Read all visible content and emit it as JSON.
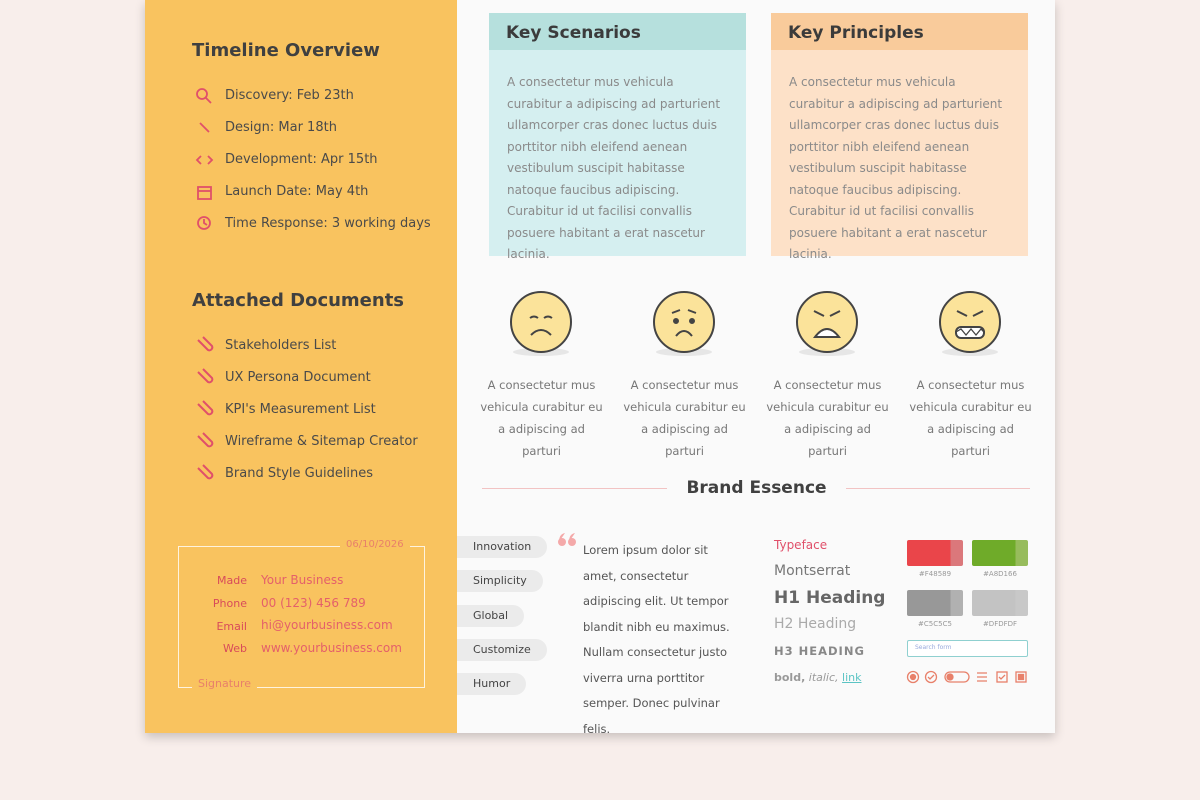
{
  "timeline": {
    "title": "Timeline Overview",
    "items": [
      "Discovery:  Feb 23th",
      "Design: Mar 18th",
      "Development: Apr 15th",
      "Launch Date: May 4th",
      "Time Response: 3 working days"
    ]
  },
  "documents": {
    "title": "Attached Documents",
    "items": [
      "Stakeholders List",
      "UX Persona Document",
      "KPI's Measurement List",
      "Wireframe & Sitemap Creator",
      "Brand Style Guidelines"
    ]
  },
  "signature": {
    "date": "06/10/2026",
    "rows": [
      {
        "label": "Made",
        "value": "Your Business"
      },
      {
        "label": "Phone",
        "value": "00 (123) 456 789"
      },
      {
        "label": "Email",
        "value": "hi@yourbusiness.com"
      },
      {
        "label": "Web",
        "value": "www.yourbusiness.com"
      }
    ],
    "footer": "Signature"
  },
  "key_scenarios": {
    "title": "Key Scenarios",
    "body": "A consectetur mus vehicula curabitur a adipiscing ad parturient ullamcorper cras donec luctus duis porttitor nibh eleifend aenean vestibulum suscipit habitasse natoque faucibus adipiscing. Curabitur id ut facilisi convallis posuere habitant a erat nascetur lacinia."
  },
  "key_principles": {
    "title": "Key Principles",
    "body": "A consectetur mus vehicula curabitur a adipiscing ad parturient ullamcorper cras donec luctus duis porttitor nibh eleifend aenean vestibulum suscipit habitasse natoque faucibus adipiscing. Curabitur id ut facilisi convallis posuere habitant a erat nascetur lacinia."
  },
  "emotions": [
    "A consectetur mus vehicula curabitur eu a adipiscing ad parturi",
    "A consectetur mus vehicula curabitur eu a adipiscing ad parturi",
    "A consectetur mus vehicula curabitur eu a adipiscing ad parturi",
    "A consectetur mus vehicula curabitur eu a adipiscing ad parturi"
  ],
  "brand_essence": {
    "title": "Brand Essence",
    "tags": [
      "Innovation",
      "Simplicity",
      "Global",
      "Customize",
      "Humor"
    ],
    "quote": "Lorem ipsum dolor sit amet, consectetur adipiscing elit. Ut tempor blandit nibh eu maximus. Nullam consectetur justo viverra urna porttitor semper. Donec pulvinar felis.",
    "typeface": {
      "label": "Typeface",
      "font": "Montserrat",
      "h1": "H1 Heading",
      "h2": "H2 Heading",
      "h3": "H3 HEADING",
      "bold": "bold,",
      "italic": "italic,",
      "link": "link"
    },
    "swatches": [
      "#F48589",
      "#A8D166",
      "#C5C5C5",
      "#DFDFDF"
    ],
    "search_placeholder": "Search form"
  }
}
